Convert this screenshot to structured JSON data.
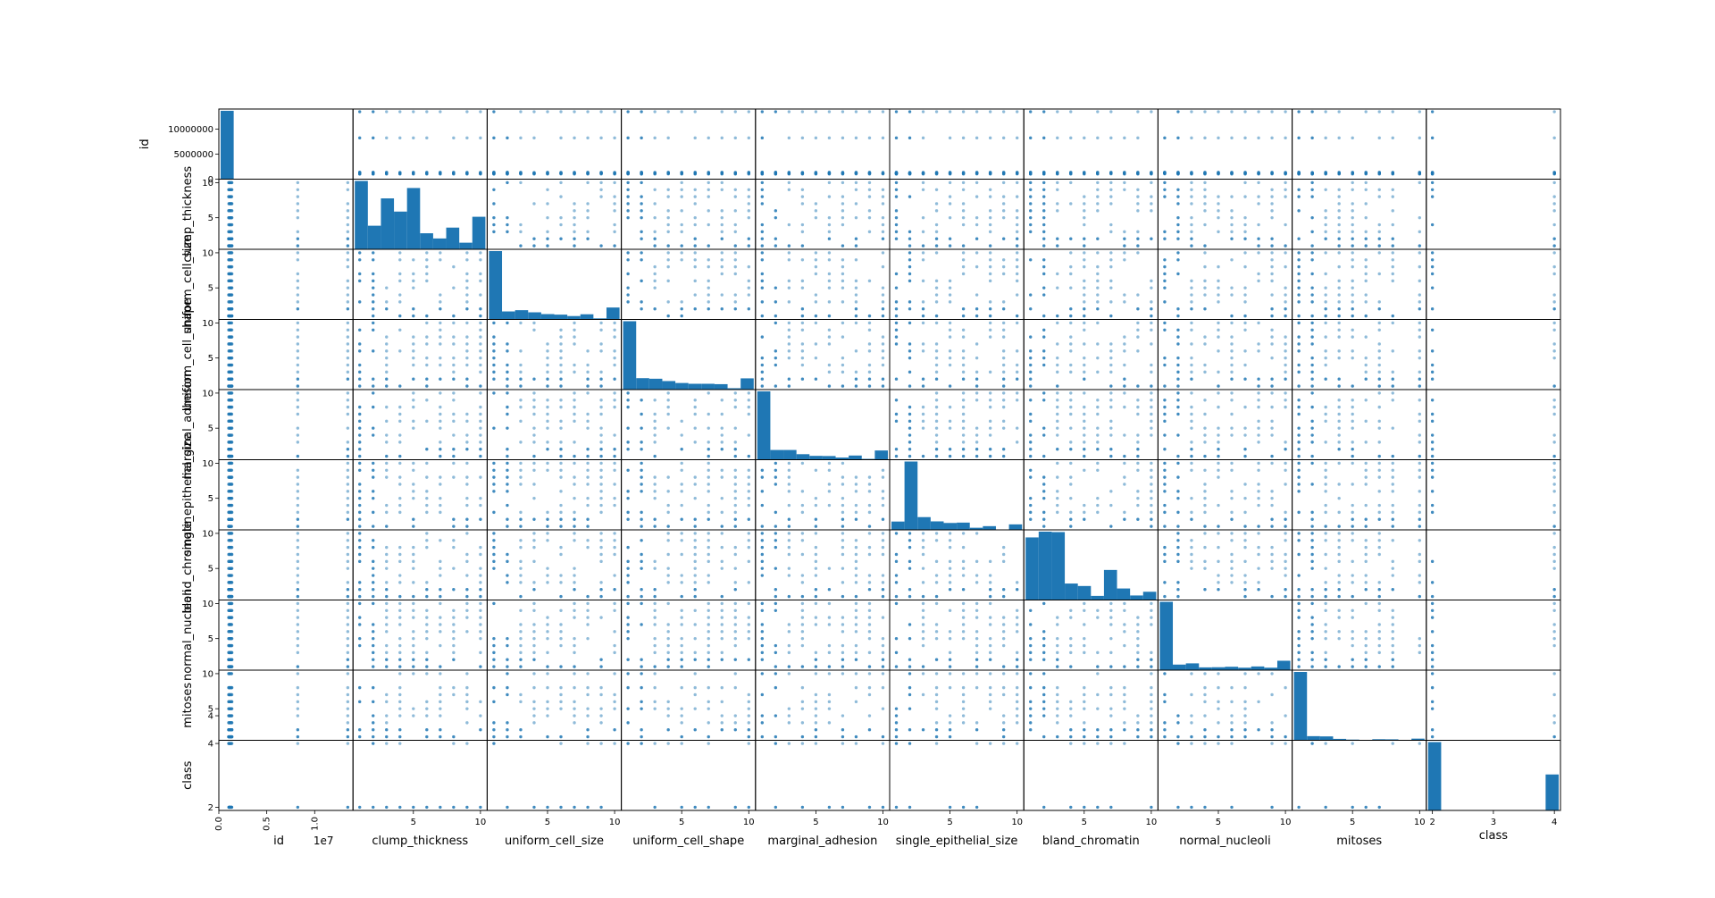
{
  "chart_data": {
    "type": "scatter",
    "subtype": "scatter_matrix",
    "grid": false,
    "diagonal": "histogram",
    "point_color": "#1f77b4",
    "bar_color": "#1f77b4",
    "point_alpha": 0.5,
    "variables": [
      "id",
      "clump_thickness",
      "uniform_cell_size",
      "uniform_cell_shape",
      "marginal_adhesion",
      "single_epithelial_size",
      "bland_chromatin",
      "normal_nucleoli",
      "mitoses",
      "class"
    ],
    "axis_ranges": {
      "id": [
        0,
        14000000
      ],
      "clump_thickness": [
        0.5,
        10.5
      ],
      "uniform_cell_size": [
        0.5,
        10.5
      ],
      "uniform_cell_shape": [
        0.5,
        10.5
      ],
      "marginal_adhesion": [
        0.5,
        10.5
      ],
      "single_epithelial_size": [
        0.5,
        10.5
      ],
      "bland_chromatin": [
        0.5,
        10.5
      ],
      "normal_nucleoli": [
        0.5,
        10.5
      ],
      "mitoses": [
        0.5,
        10.5
      ],
      "class": [
        1.9,
        4.1
      ]
    },
    "ticks": {
      "bottom": {
        "id": [
          "0.0",
          "0.5",
          "1.0"
        ],
        "clump_thickness": [
          "5",
          "10"
        ],
        "uniform_cell_size": [
          "5",
          "10"
        ],
        "uniform_cell_shape": [
          "5",
          "10"
        ],
        "marginal_adhesion": [
          "5",
          "10"
        ],
        "single_epithelial_size": [
          "5",
          "10"
        ],
        "bland_chromatin": [
          "5",
          "10"
        ],
        "normal_nucleoli": [
          "5",
          "10"
        ],
        "mitoses": [
          "5",
          "10"
        ],
        "class": [
          "2",
          "3",
          "4"
        ]
      },
      "left": {
        "id": [
          "0",
          "5000000",
          "10000000"
        ],
        "clump_thickness": [
          "5",
          "10"
        ],
        "uniform_cell_size": [
          "5",
          "10"
        ],
        "uniform_cell_shape": [
          "5",
          "10"
        ],
        "marginal_adhesion": [
          "5",
          "10"
        ],
        "single_epithelial_size": [
          "5",
          "10"
        ],
        "bland_chromatin": [
          "5",
          "10"
        ],
        "normal_nucleoli": [
          "5",
          "10"
        ],
        "mitoses": [
          "4",
          "5",
          "10"
        ],
        "class": [
          "2",
          "4"
        ]
      }
    },
    "x_offset_label": "1e7",
    "histograms": {
      "id": [
        698,
        0,
        0,
        0,
        0,
        0,
        0,
        0,
        0,
        1
      ],
      "clump_thickness": [
        145,
        50,
        108,
        80,
        130,
        34,
        23,
        46,
        14,
        69
      ],
      "uniform_cell_size": [
        384,
        45,
        52,
        40,
        30,
        27,
        19,
        29,
        6,
        67
      ],
      "uniform_cell_shape": [
        353,
        59,
        56,
        44,
        34,
        30,
        30,
        28,
        7,
        58
      ],
      "marginal_adhesion": [
        407,
        58,
        58,
        33,
        23,
        22,
        13,
        25,
        5,
        55
      ],
      "single_epithelial_size": [
        47,
        386,
        72,
        48,
        39,
        41,
        12,
        21,
        2,
        31
      ],
      "bland_chromatin": [
        152,
        166,
        165,
        40,
        34,
        10,
        73,
        28,
        11,
        20
      ],
      "normal_nucleoli": [
        443,
        36,
        44,
        18,
        19,
        22,
        16,
        24,
        16,
        61
      ],
      "mitoses": [
        579,
        35,
        33,
        12,
        6,
        3,
        9,
        8,
        0,
        14
      ],
      "class": [
        458,
        0,
        0,
        0,
        0,
        0,
        0,
        0,
        0,
        241
      ]
    },
    "levels": {
      "id": [
        1017023,
        1041801,
        1061990,
        1099510,
        1113061,
        1169049,
        1197440,
        1214966,
        1253917,
        1299994,
        1320077,
        1347943,
        1368882,
        8233704,
        13454352
      ],
      "clump_thickness": [
        1,
        2,
        3,
        4,
        5,
        6,
        7,
        8,
        9,
        10
      ],
      "uniform_cell_size": [
        1,
        2,
        3,
        4,
        5,
        6,
        7,
        8,
        9,
        10
      ],
      "uniform_cell_shape": [
        1,
        2,
        3,
        4,
        5,
        6,
        7,
        8,
        9,
        10
      ],
      "marginal_adhesion": [
        1,
        2,
        3,
        4,
        5,
        6,
        7,
        8,
        9,
        10
      ],
      "single_epithelial_size": [
        1,
        2,
        3,
        4,
        5,
        6,
        7,
        8,
        9,
        10
      ],
      "bland_chromatin": [
        1,
        2,
        3,
        4,
        5,
        6,
        7,
        8,
        9,
        10
      ],
      "normal_nucleoli": [
        1,
        2,
        3,
        4,
        5,
        6,
        7,
        8,
        9,
        10
      ],
      "mitoses": [
        1,
        2,
        3,
        4,
        5,
        6,
        7,
        8,
        10
      ],
      "class": [
        2,
        4
      ]
    }
  }
}
